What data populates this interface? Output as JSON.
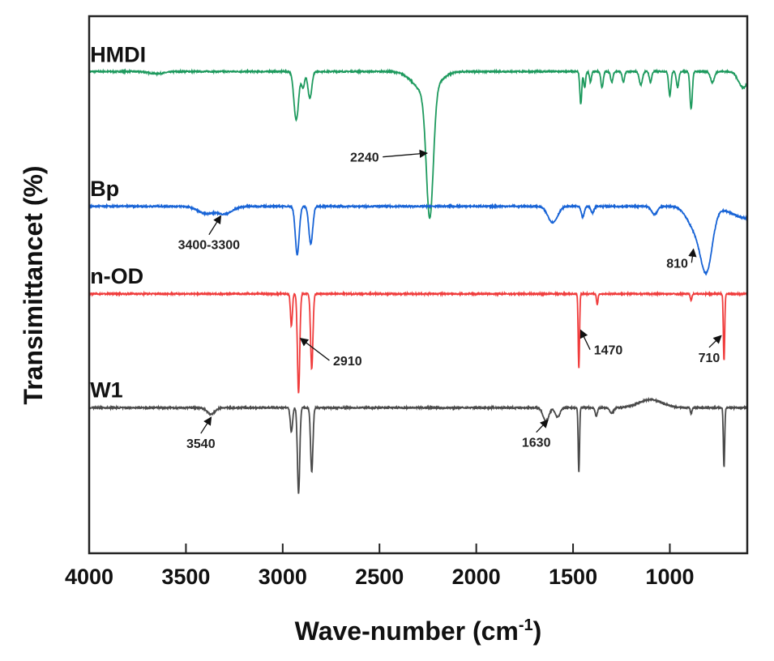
{
  "chart_data": {
    "type": "line",
    "title": "",
    "xlabel": "Wave-number (cm",
    "xlabel_sup": "-1",
    "xlabel_close": ")",
    "ylabel": "Transimittancet (%)",
    "xlim": [
      4000,
      600
    ],
    "ylim": [
      0,
      100
    ],
    "xticks": [
      4000,
      3500,
      3000,
      2500,
      2000,
      1500,
      1000
    ],
    "xtick_labels": [
      "4000",
      "3500",
      "3000",
      "2500",
      "2000",
      "1500",
      "1000"
    ],
    "grid": false,
    "series": [
      {
        "name": "HMDI",
        "color": "#1e9a5e",
        "baseline": 89.7,
        "label_pos": [
          3995,
          91.5
        ],
        "bands": [
          [
            3650,
            0.4,
            40
          ],
          [
            2930,
            9,
            12
          ],
          [
            2895,
            3,
            8
          ],
          [
            2860,
            5,
            10
          ],
          [
            2240,
            23.5,
            18
          ],
          [
            2260,
            4,
            60
          ],
          [
            1460,
            6,
            5
          ],
          [
            1440,
            3,
            5
          ],
          [
            1410,
            2,
            5
          ],
          [
            1350,
            3,
            6
          ],
          [
            1300,
            2,
            6
          ],
          [
            1240,
            2,
            6
          ],
          [
            1150,
            2.5,
            8
          ],
          [
            1100,
            2,
            6
          ],
          [
            1000,
            4.5,
            6
          ],
          [
            960,
            3,
            6
          ],
          [
            890,
            7,
            6
          ],
          [
            780,
            2,
            10
          ],
          [
            620,
            3,
            25
          ]
        ]
      },
      {
        "name": "Bp",
        "color": "#1763d6",
        "baseline": 64.6,
        "label_pos": [
          3995,
          66.5
        ],
        "bands": [
          [
            3400,
            1.3,
            40
          ],
          [
            3300,
            1.4,
            40
          ],
          [
            2925,
            9,
            10
          ],
          [
            2855,
            7,
            10
          ],
          [
            1605,
            3,
            25
          ],
          [
            1450,
            2,
            8
          ],
          [
            1400,
            1.2,
            8
          ],
          [
            1080,
            1.5,
            15
          ],
          [
            870,
            4,
            40
          ],
          [
            810,
            11,
            30
          ],
          [
            600,
            2.2,
            80
          ]
        ]
      },
      {
        "name": "n-OD",
        "color": "#f03c3c",
        "baseline": 48.3,
        "label_pos": [
          3995,
          50.2
        ],
        "bands": [
          [
            2955,
            6,
            5
          ],
          [
            2918,
            18.5,
            6
          ],
          [
            2850,
            14,
            6
          ],
          [
            1470,
            14,
            3.5
          ],
          [
            1375,
            2,
            4
          ],
          [
            890,
            1.2,
            4
          ],
          [
            720,
            12.5,
            3.5
          ]
        ]
      },
      {
        "name": "W1",
        "color": "#4a4a4a",
        "baseline": 27.1,
        "label_pos": [
          3995,
          29.0
        ],
        "bands": [
          [
            3370,
            1.2,
            20
          ],
          [
            2955,
            4.5,
            6
          ],
          [
            2918,
            16,
            6
          ],
          [
            2850,
            12,
            6
          ],
          [
            1640,
            2.5,
            15
          ],
          [
            1580,
            1.8,
            12
          ],
          [
            1470,
            12,
            3.5
          ],
          [
            1380,
            1.5,
            6
          ],
          [
            1300,
            1,
            10
          ],
          [
            1100,
            -1.5,
            60
          ],
          [
            890,
            1.2,
            4
          ],
          [
            720,
            11,
            3.5
          ]
        ]
      }
    ],
    "annotations": [
      {
        "text": "2240",
        "label_at": [
          2577,
          72.9
        ],
        "arrow_to": [
          2255,
          74.5
        ]
      },
      {
        "text": "3400-3300",
        "label_at": [
          3381,
          56.6
        ],
        "arrow_to": [
          3320,
          62.8
        ]
      },
      {
        "text": "810",
        "label_at": [
          962,
          53.2
        ],
        "arrow_to": [
          878,
          56.6
        ]
      },
      {
        "text": "2910",
        "label_at": [
          2665,
          35.0
        ],
        "arrow_to": [
          2908,
          40.0
        ]
      },
      {
        "text": "1470",
        "label_at": [
          1318,
          37.0
        ],
        "arrow_to": [
          1460,
          41.5
        ]
      },
      {
        "text": "710",
        "label_at": [
          797,
          35.6
        ],
        "arrow_to": [
          735,
          40.5
        ]
      },
      {
        "text": "3540",
        "label_at": [
          3423,
          19.6
        ],
        "arrow_to": [
          3370,
          25.3
        ]
      },
      {
        "text": "1630",
        "label_at": [
          1690,
          19.8
        ],
        "arrow_to": [
          1630,
          24.8
        ]
      }
    ]
  }
}
